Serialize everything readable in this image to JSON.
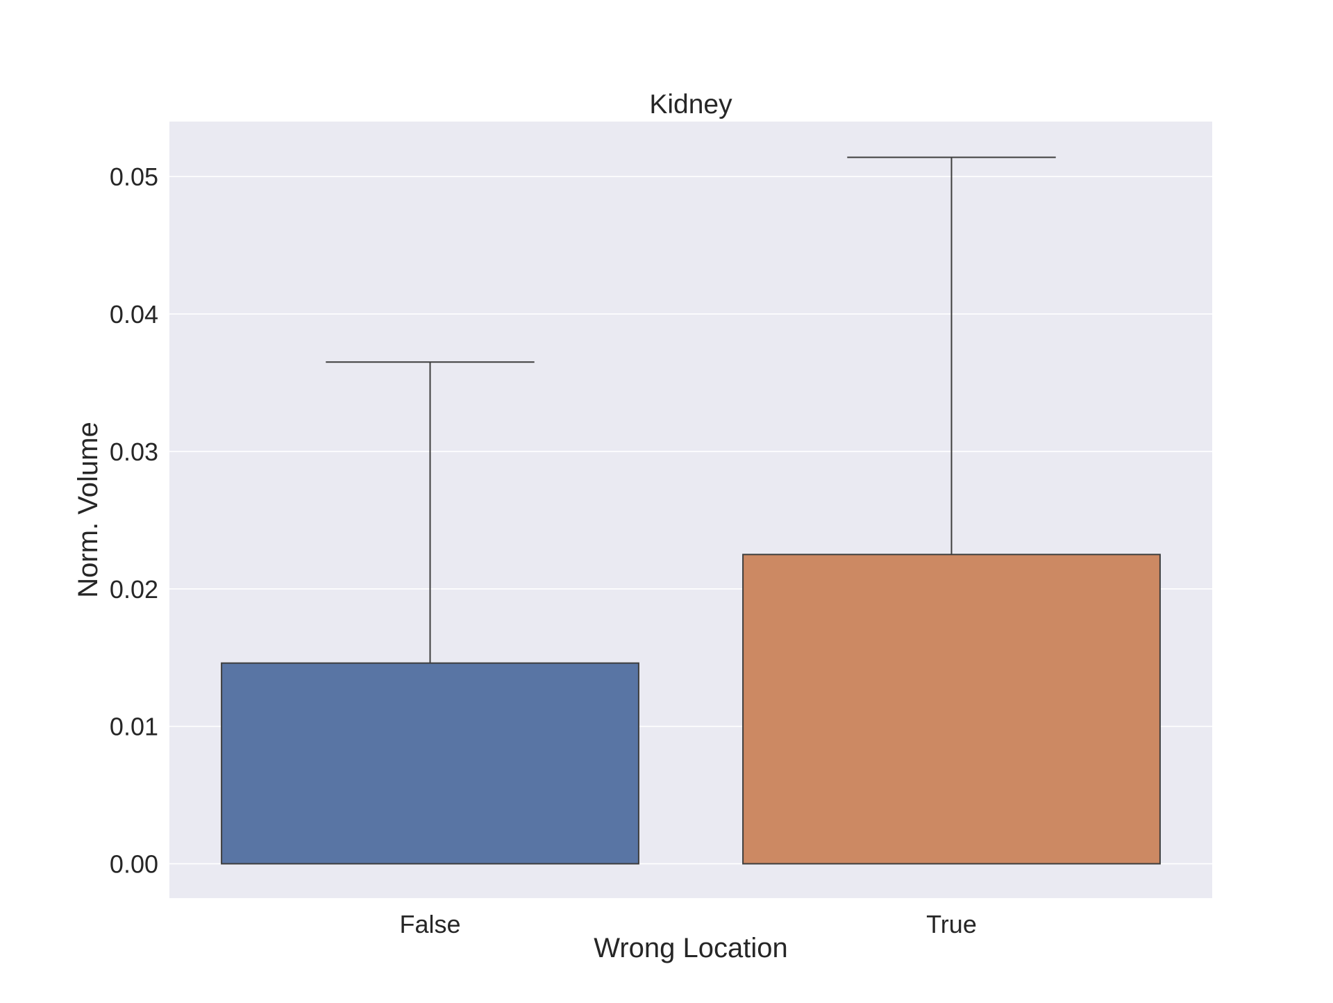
{
  "chart_data": {
    "type": "bar",
    "title": "Kidney",
    "xlabel": "Wrong Location",
    "ylabel": "Norm. Volume",
    "categories": [
      "False",
      "True"
    ],
    "values": [
      0.0146,
      0.0225
    ],
    "error_top": [
      0.0365,
      0.0514
    ],
    "colors": [
      "#5975a4",
      "#cc8963"
    ],
    "ylim": [
      -0.0025,
      0.054
    ],
    "yticks": [
      0.0,
      0.01,
      0.02,
      0.03,
      0.04,
      0.05
    ],
    "ytick_labels": [
      "0.00",
      "0.01",
      "0.02",
      "0.03",
      "0.04",
      "0.05"
    ],
    "grid": true,
    "plot_background": "#eaeaf2",
    "grid_color": "#ffffff",
    "edge_color": "#3d3d3d"
  }
}
